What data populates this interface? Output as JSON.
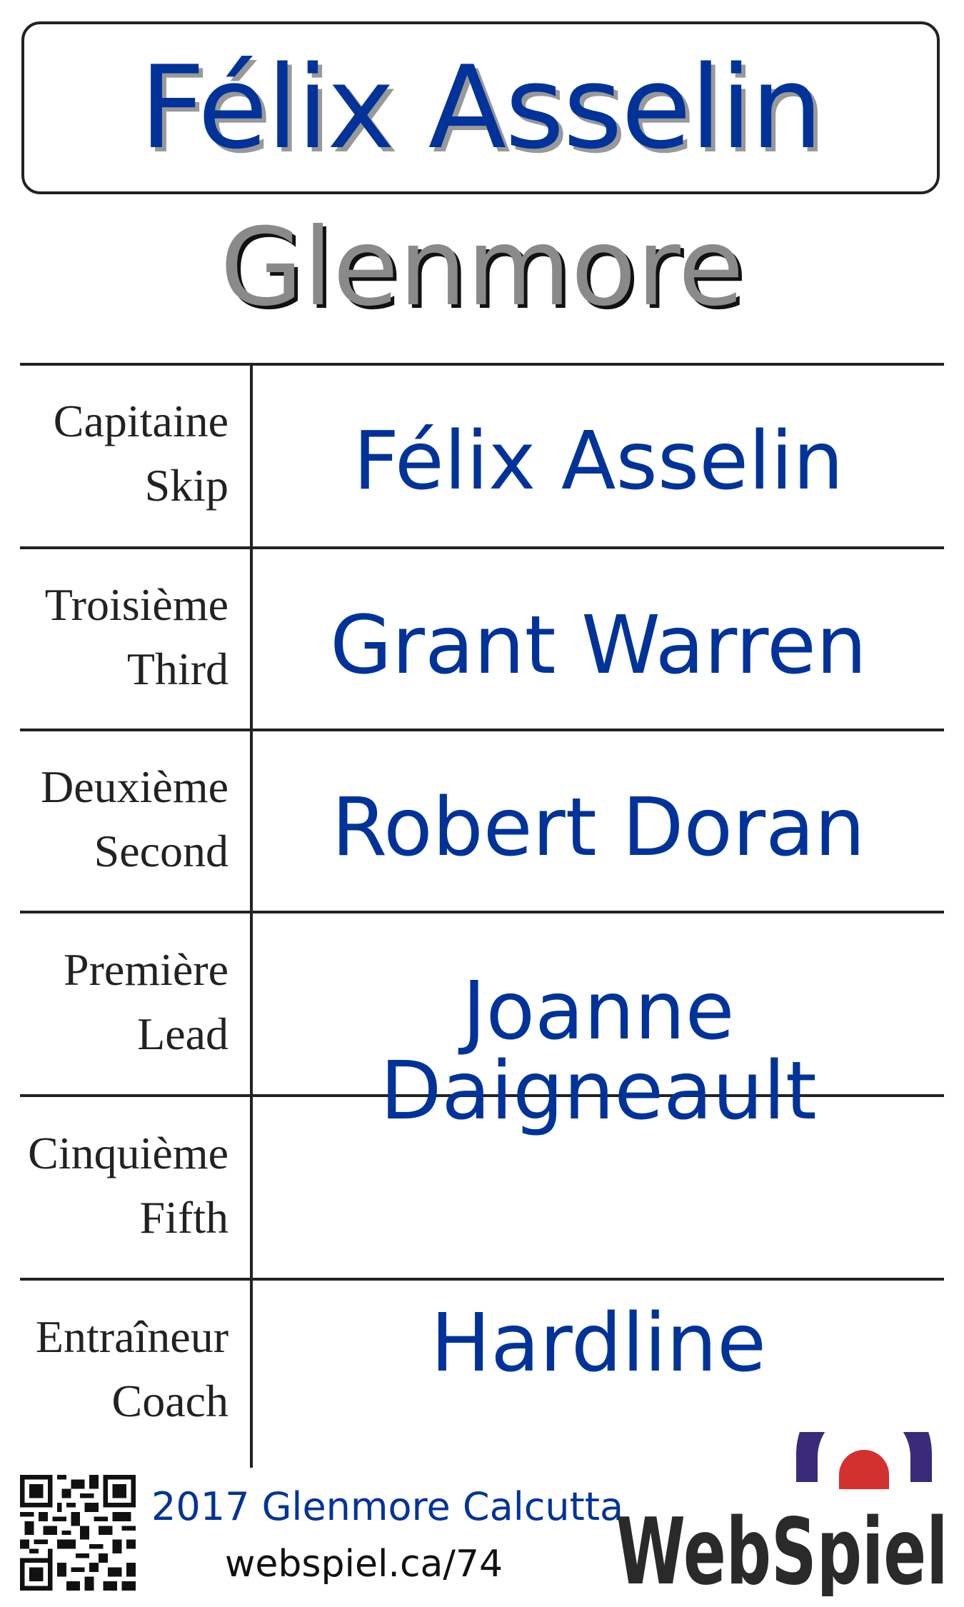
{
  "header": {
    "skip_name": "Félix Asselin",
    "club": "Glenmore"
  },
  "roster": [
    {
      "label_fr": "Capitaine",
      "label_en": "Skip",
      "name": "Félix Asselin"
    },
    {
      "label_fr": "Troisième",
      "label_en": "Third",
      "name": "Grant Warren"
    },
    {
      "label_fr": "Deuxième",
      "label_en": "Second",
      "name": "Robert Doran"
    },
    {
      "label_fr": "Première",
      "label_en": "Lead",
      "name": "Joanne Daigneault"
    },
    {
      "label_fr": "Cinquième",
      "label_en": "Fifth",
      "name": ""
    },
    {
      "label_fr": "Entraîneur",
      "label_en": "Coach",
      "name": "Hardline"
    }
  ],
  "footer": {
    "event": "2017 Glenmore Calcutta",
    "url": "webspiel.ca/74",
    "logo_text": "WebSpiel",
    "qr_icon": "qr-code-icon"
  },
  "colors": {
    "accent": "#003399",
    "logo_purple": "#3a2a7a",
    "logo_red": "#d43030",
    "logo_text": "#2a2a2a"
  }
}
